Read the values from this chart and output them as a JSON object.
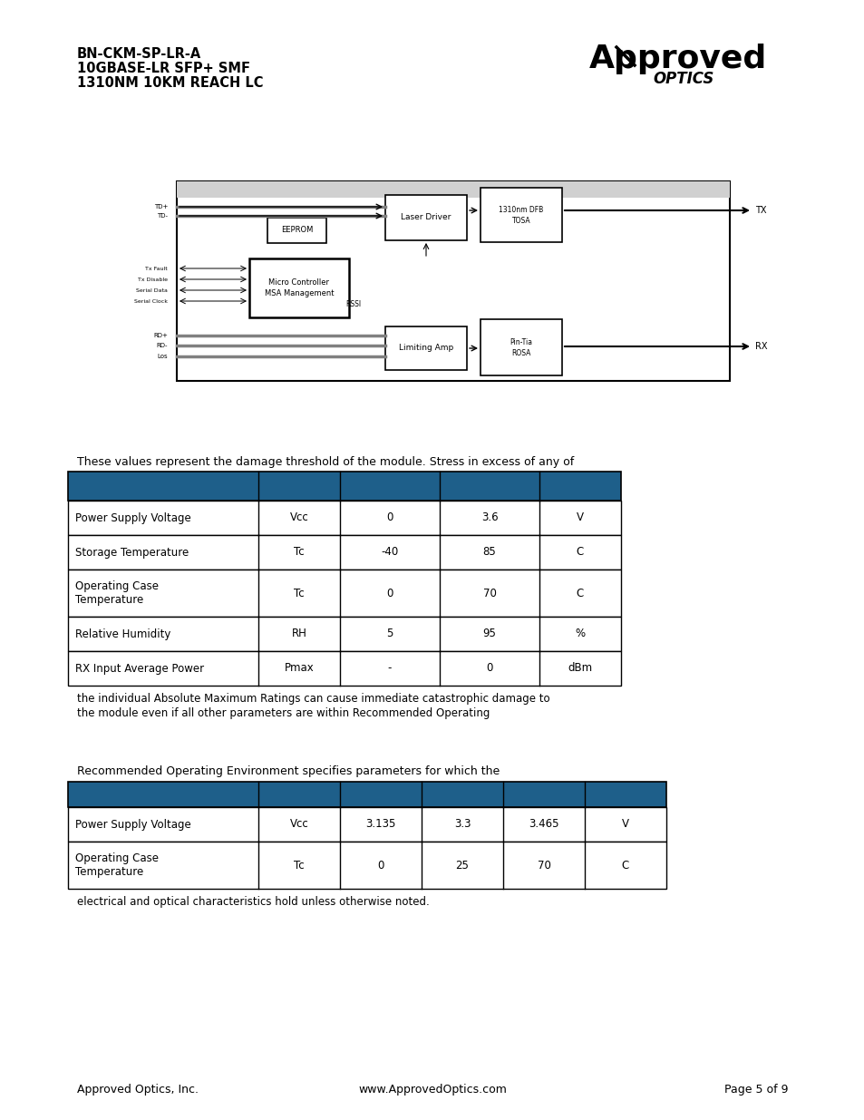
{
  "header_line1": "BN-CKM-SP-LR-A",
  "header_line2": "10GBASE-LR SFP+ SMF",
  "header_line3": "1310NM 10KM REACH LC",
  "bg_color": "#ffffff",
  "table_header_color": "#1e5f8a",
  "table_border_color": "#000000",
  "text_color": "#000000",
  "table1_intro": "These values represent the damage threshold of the module. Stress in excess of any of",
  "table1_outro_line1": "the individual Absolute Maximum Ratings can cause immediate catastrophic damage to",
  "table1_outro_line2": "the module even if all other parameters are within Recommended Operating",
  "table1_rows": [
    [
      "Power Supply Voltage",
      "Vcc",
      "0",
      "3.6",
      "V"
    ],
    [
      "Storage Temperature",
      "Tc",
      "-40",
      "85",
      "C"
    ],
    [
      "Operating Case\nTemperature",
      "Tc",
      "0",
      "70",
      "C"
    ],
    [
      "Relative Humidity",
      "RH",
      "5",
      "95",
      "%"
    ],
    [
      "RX Input Average Power",
      "Pmax",
      "-",
      "0",
      "dBm"
    ]
  ],
  "table2_intro": "Recommended Operating Environment specifies parameters for which the",
  "table2_outro": "electrical and optical characteristics hold unless otherwise noted.",
  "table2_rows": [
    [
      "Power Supply Voltage",
      "Vcc",
      "3.135",
      "3.3",
      "3.465",
      "V"
    ],
    [
      "Operating Case\nTemperature",
      "Tc",
      "0",
      "25",
      "70",
      "C"
    ]
  ],
  "footer_left": "Approved Optics, Inc.",
  "footer_center": "www.ApprovedOptics.com",
  "footer_right": "Page 5 of 9"
}
